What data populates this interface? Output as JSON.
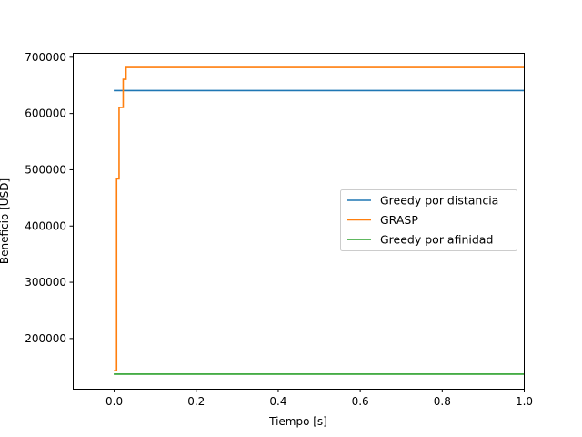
{
  "chart_data": {
    "type": "line",
    "xlabel": "Tiempo [s]",
    "ylabel": "Beneficio [USD]",
    "xlim": [
      -0.1,
      1.0
    ],
    "ylim": [
      110000,
      707000
    ],
    "xticks": [
      0.0,
      0.2,
      0.4,
      0.6,
      0.8,
      1.0
    ],
    "xtick_labels": [
      "0.0",
      "0.2",
      "0.4",
      "0.6",
      "0.8",
      "1.0"
    ],
    "yticks": [
      200000,
      300000,
      400000,
      500000,
      600000,
      700000
    ],
    "ytick_labels": [
      "200000",
      "300000",
      "400000",
      "500000",
      "600000",
      "700000"
    ],
    "grid": false,
    "legend_position": "center-right",
    "series": [
      {
        "name": "Greedy por distancia",
        "color": "#1f77b4",
        "step": false,
        "x": [
          0.0,
          1.0
        ],
        "y": [
          640000,
          640000
        ]
      },
      {
        "name": "GRASP",
        "color": "#ff7f0e",
        "step": true,
        "x": [
          0.0,
          0.007,
          0.013,
          0.023,
          0.03,
          1.0
        ],
        "y": [
          142000,
          483000,
          610000,
          660000,
          681000,
          681000
        ]
      },
      {
        "name": "Greedy por afinidad",
        "color": "#2ca02c",
        "step": false,
        "x": [
          0.0,
          1.0
        ],
        "y": [
          136000,
          136000
        ]
      }
    ]
  }
}
